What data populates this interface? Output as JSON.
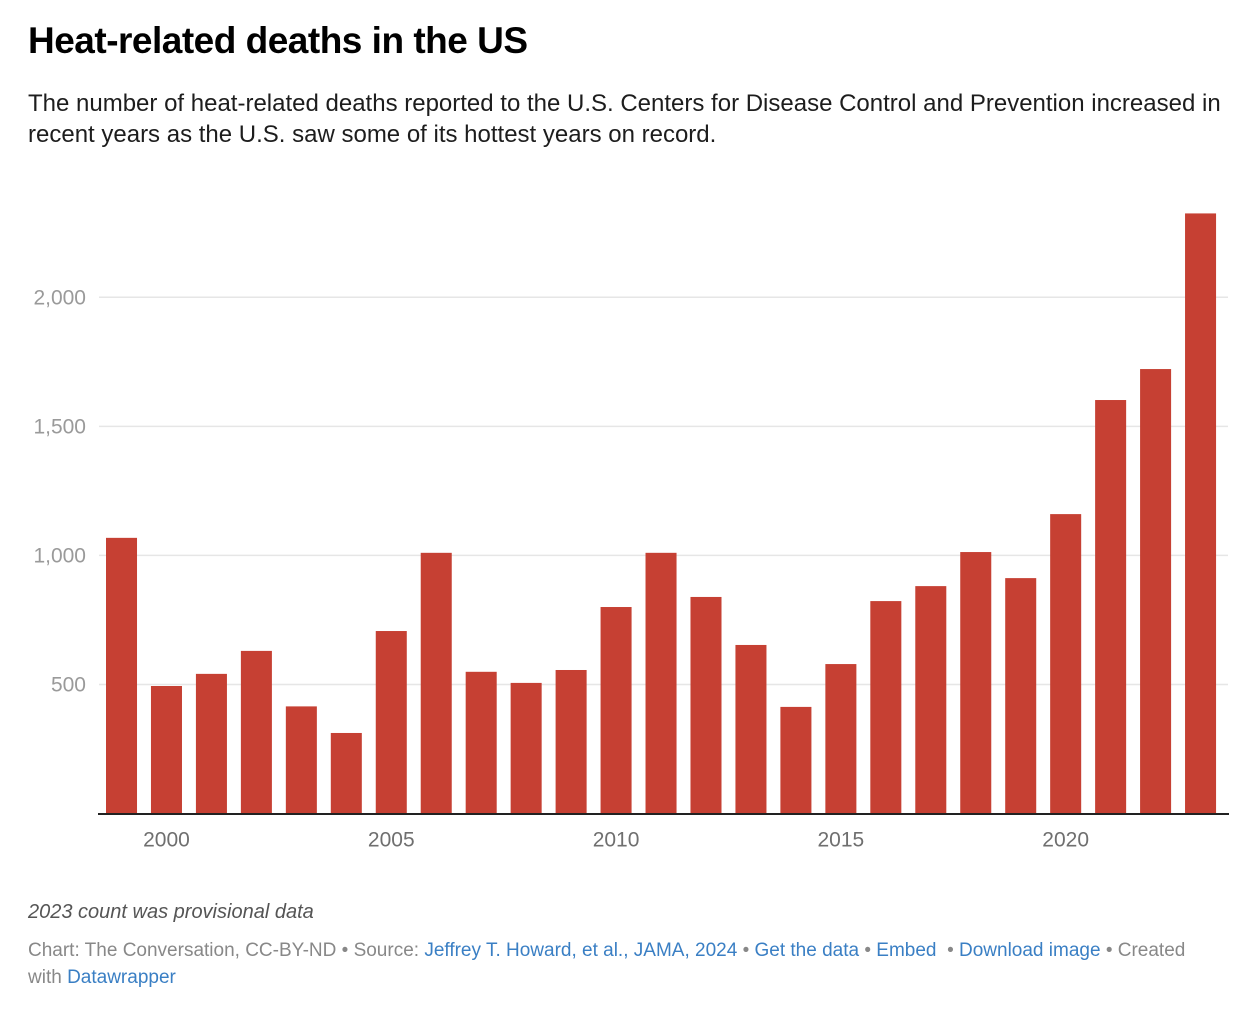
{
  "header": {
    "title": "Heat-related deaths in the US",
    "subtitle": "The number of heat-related deaths reported to the U.S. Centers for Disease Control and Prevention increased in recent years as the U.S. saw some of its hottest years on record."
  },
  "chart_data": {
    "type": "bar",
    "title": "Heat-related deaths in the US",
    "xlabel": "",
    "ylabel": "",
    "categories": [
      "1999",
      "2000",
      "2001",
      "2002",
      "2003",
      "2004",
      "2005",
      "2006",
      "2007",
      "2008",
      "2009",
      "2010",
      "2011",
      "2012",
      "2013",
      "2014",
      "2015",
      "2016",
      "2017",
      "2018",
      "2019",
      "2020",
      "2021",
      "2022",
      "2023"
    ],
    "values": [
      1068,
      494,
      541,
      630,
      415,
      312,
      707,
      1010,
      549,
      506,
      556,
      800,
      1010,
      839,
      653,
      413,
      579,
      823,
      881,
      1013,
      912,
      1160,
      1602,
      1722,
      2325
    ],
    "ylim": [
      0,
      2400
    ],
    "yticks": [
      500,
      1000,
      1500,
      2000
    ],
    "ytick_labels": [
      "500",
      "1,000",
      "1,500",
      "2,000"
    ],
    "xticks": [
      "2000",
      "2005",
      "2010",
      "2015",
      "2020"
    ],
    "grid": true,
    "bar_color": "#c64033",
    "grid_color": "#e6e6e6",
    "axis_color": "#222222"
  },
  "notes": {
    "annotation": "2023 count was provisional data"
  },
  "footer": {
    "chart_credit": "Chart: The Conversation, CC-BY-ND",
    "source_label": "Source:",
    "source_link": "Jeffrey T. Howard, et al., JAMA, 2024",
    "get_data": "Get the data",
    "embed": "Embed",
    "download": "Download image",
    "created_with": "Created with",
    "datawrapper": "Datawrapper",
    "separator": "•",
    "link_color": "#3a7fc4"
  }
}
